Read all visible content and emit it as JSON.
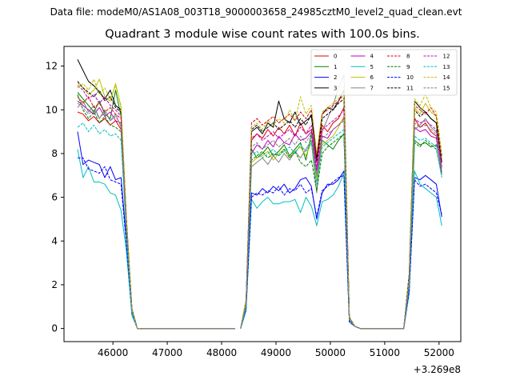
{
  "figure": {
    "supertitle": "Data file: modeM0/AS1A08_003T18_9000003658_24985cztM0_level2_quad_clean.evt",
    "title": "Quadrant 3 module wise count rates with 100.0s bins."
  },
  "chart_data": {
    "type": "line",
    "title": "Quadrant 3 module wise count rates with 100.0s bins.",
    "xlabel": "",
    "ylabel": "",
    "x_offset_label": "+3.269e8",
    "xlim": [
      45100,
      52400
    ],
    "ylim": [
      -0.6,
      12.9
    ],
    "xticks": [
      46000,
      47000,
      48000,
      49000,
      50000,
      51000,
      52000
    ],
    "xtick_labels": [
      "46000",
      "47000",
      "48000",
      "49000",
      "50000",
      "51000",
      "52000"
    ],
    "yticks": [
      0,
      2,
      4,
      6,
      8,
      10,
      12
    ],
    "ytick_labels": [
      "0",
      "2",
      "4",
      "6",
      "8",
      "10",
      "12"
    ],
    "grid": false,
    "legend_position": "top-right",
    "x": [
      45350,
      45450,
      45550,
      45650,
      45750,
      45850,
      45950,
      46050,
      46150,
      46250,
      46350,
      46450,
      46550,
      46650,
      46750,
      46850,
      46950,
      47050,
      47150,
      47250,
      47350,
      47450,
      47550,
      47650,
      47750,
      47850,
      47950,
      48050,
      48150,
      48250,
      48350,
      48450,
      48550,
      48650,
      48750,
      48850,
      48950,
      49050,
      49150,
      49250,
      49350,
      49450,
      49550,
      49650,
      49750,
      49850,
      49950,
      50050,
      50150,
      50250,
      50350,
      50450,
      50550,
      50650,
      50750,
      50850,
      50950,
      51050,
      51150,
      51250,
      51350,
      51450,
      51550,
      51650,
      51750,
      51850,
      51950,
      52050
    ],
    "segments": [
      [
        0,
        12
      ],
      [
        12,
        29
      ],
      [
        30,
        51
      ],
      [
        51,
        58
      ],
      [
        58,
        67
      ]
    ],
    "series": [
      {
        "name": "0",
        "color": "#e00000",
        "dash": "solid",
        "values": [
          9.9,
          9.8,
          9.5,
          9.7,
          9.4,
          9.6,
          9.3,
          9.5,
          9.1,
          4.5,
          0.8,
          0,
          0,
          0,
          0,
          0,
          0,
          0,
          0,
          0,
          0,
          0,
          0,
          0,
          0,
          0,
          0,
          0,
          0,
          0,
          0,
          1.2,
          8.6,
          8.9,
          8.7,
          9.1,
          8.8,
          9.2,
          8.9,
          9.3,
          8.8,
          9.4,
          8.9,
          9.1,
          7.6,
          9.3,
          9.0,
          9.4,
          9.6,
          10.1,
          0.5,
          0.1,
          0,
          0,
          0,
          0,
          0,
          0,
          0,
          0,
          0,
          2.3,
          9.6,
          9.2,
          9.4,
          9.0,
          8.8,
          7.4
        ]
      },
      {
        "name": "1",
        "color": "#008000",
        "dash": "solid",
        "values": [
          10.8,
          10.5,
          10.2,
          9.9,
          10.4,
          9.8,
          9.6,
          10.9,
          9.7,
          4.8,
          0.9,
          0,
          0,
          0,
          0,
          0,
          0,
          0,
          0,
          0,
          0,
          0,
          0,
          0,
          0,
          0,
          0,
          0,
          0,
          0,
          0,
          1.1,
          8.2,
          7.8,
          8.0,
          8.3,
          7.9,
          8.1,
          8.4,
          7.9,
          8.2,
          8.5,
          7.7,
          8.9,
          6.9,
          8.6,
          8.4,
          8.2,
          8.6,
          8.9,
          0.4,
          0.1,
          0,
          0,
          0,
          0,
          0,
          0,
          0,
          0,
          0,
          2.1,
          8.6,
          8.4,
          8.5,
          8.3,
          8.4,
          7.8
        ]
      },
      {
        "name": "2",
        "color": "#0000ff",
        "dash": "solid",
        "values": [
          9.0,
          7.5,
          7.7,
          7.6,
          7.5,
          6.9,
          7.4,
          6.8,
          6.9,
          4.0,
          0.7,
          0,
          0,
          0,
          0,
          0,
          0,
          0,
          0,
          0,
          0,
          0,
          0,
          0,
          0,
          0,
          0,
          0,
          0,
          0,
          0,
          0.9,
          6.2,
          6.1,
          6.4,
          6.2,
          6.5,
          6.3,
          6.6,
          6.2,
          6.4,
          6.8,
          6.9,
          6.5,
          5.0,
          6.2,
          6.6,
          6.6,
          6.8,
          7.2,
          0.3,
          0.1,
          0,
          0,
          0,
          0,
          0,
          0,
          0,
          0,
          0,
          1.8,
          6.9,
          6.8,
          7.0,
          6.8,
          6.6,
          5.1
        ]
      },
      {
        "name": "3",
        "color": "#000000",
        "dash": "solid",
        "values": [
          12.3,
          11.8,
          11.3,
          11.1,
          10.8,
          10.5,
          10.9,
          10.2,
          10.0,
          5.0,
          0.9,
          0,
          0,
          0,
          0,
          0,
          0,
          0,
          0,
          0,
          0,
          0,
          0,
          0,
          0,
          0,
          0,
          0,
          0,
          0,
          0,
          1.3,
          9.0,
          9.2,
          8.9,
          9.4,
          9.2,
          10.4,
          9.6,
          9.4,
          9.9,
          9.3,
          9.5,
          9.7,
          7.8,
          9.8,
          10.1,
          10.0,
          10.4,
          10.9,
          0.5,
          0.1,
          0,
          0,
          0,
          0,
          0,
          0,
          0,
          0,
          0,
          2.5,
          10.4,
          10.1,
          9.9,
          9.6,
          9.4,
          7.6
        ]
      },
      {
        "name": "4",
        "color": "#c000c0",
        "dash": "solid",
        "values": [
          10.4,
          10.2,
          10.0,
          9.8,
          10.1,
          9.7,
          9.9,
          9.5,
          9.4,
          4.6,
          0.8,
          0,
          0,
          0,
          0,
          0,
          0,
          0,
          0,
          0,
          0,
          0,
          0,
          0,
          0,
          0,
          0,
          0,
          0,
          0,
          0,
          1.1,
          8.0,
          8.4,
          8.2,
          8.6,
          8.3,
          8.8,
          8.5,
          8.4,
          8.9,
          8.6,
          8.7,
          9.0,
          7.2,
          8.8,
          8.7,
          9.1,
          9.3,
          9.6,
          0.4,
          0.1,
          0,
          0,
          0,
          0,
          0,
          0,
          0,
          0,
          0,
          2.2,
          9.2,
          9.0,
          9.1,
          8.8,
          8.7,
          7.1
        ]
      },
      {
        "name": "5",
        "color": "#00bfbf",
        "dash": "solid",
        "values": [
          8.2,
          6.9,
          7.4,
          6.7,
          6.7,
          6.6,
          6.2,
          6.1,
          5.4,
          3.5,
          0.6,
          0,
          0,
          0,
          0,
          0,
          0,
          0,
          0,
          0,
          0,
          0,
          0,
          0,
          0,
          0,
          0,
          0,
          0,
          0,
          0,
          0.8,
          5.9,
          5.5,
          5.8,
          6.0,
          5.7,
          5.7,
          5.8,
          5.8,
          5.9,
          5.3,
          6.0,
          5.6,
          4.7,
          5.8,
          5.9,
          6.1,
          6.5,
          7.1,
          0.3,
          0.1,
          0,
          0,
          0,
          0,
          0,
          0,
          0,
          0,
          0,
          1.6,
          7.2,
          6.6,
          6.4,
          6.2,
          6.0,
          4.7
        ]
      },
      {
        "name": "6",
        "color": "#bfbf00",
        "dash": "solid",
        "values": [
          11.2,
          11.0,
          10.7,
          10.9,
          11.4,
          10.6,
          10.4,
          11.2,
          10.1,
          4.9,
          0.9,
          0,
          0,
          0,
          0,
          0,
          0,
          0,
          0,
          0,
          0,
          0,
          0,
          0,
          0,
          0,
          0,
          0,
          0,
          0,
          0,
          1.2,
          7.6,
          7.8,
          7.9,
          8.1,
          7.7,
          8.0,
          8.2,
          7.8,
          8.1,
          8.3,
          7.9,
          8.5,
          6.8,
          8.4,
          8.6,
          8.8,
          9.2,
          9.7,
          0.4,
          0.1,
          0,
          0,
          0,
          0,
          0,
          0,
          0,
          0,
          0,
          2.1,
          10.1,
          9.8,
          10.3,
          9.9,
          9.7,
          7.7
        ]
      },
      {
        "name": "7",
        "color": "#808080",
        "dash": "solid",
        "values": [
          10.1,
          10.4,
          9.9,
          10.2,
          9.6,
          10.0,
          9.5,
          9.8,
          9.2,
          4.4,
          0.8,
          0,
          0,
          0,
          0,
          0,
          0,
          0,
          0,
          0,
          0,
          0,
          0,
          0,
          0,
          0,
          0,
          0,
          0,
          0,
          0,
          1.0,
          7.4,
          7.6,
          7.8,
          7.5,
          7.9,
          7.6,
          8.0,
          7.7,
          8.1,
          7.8,
          8.2,
          8.6,
          6.2,
          9.0,
          9.6,
          10.2,
          11.0,
          11.6,
          0.4,
          0.1,
          0,
          0,
          0,
          0,
          0,
          0,
          0,
          0,
          0,
          2.0,
          9.1,
          9.3,
          9.6,
          9.2,
          9.0,
          7.3
        ]
      },
      {
        "name": "8",
        "color": "#e00000",
        "dash": "dashed",
        "values": [
          10.6,
          10.3,
          10.6,
          10.1,
          10.3,
          9.9,
          10.1,
          9.8,
          9.6,
          4.7,
          0.8,
          0,
          0,
          0,
          0,
          0,
          0,
          0,
          0,
          0,
          0,
          0,
          0,
          0,
          0,
          0,
          0,
          0,
          0,
          0,
          0,
          1.2,
          9.4,
          9.6,
          9.3,
          9.5,
          9.7,
          9.4,
          9.6,
          9.8,
          9.5,
          9.9,
          9.6,
          10.0,
          7.9,
          9.8,
          10.0,
          10.2,
          10.4,
          10.7,
          0.5,
          0.1,
          0,
          0,
          0,
          0,
          0,
          0,
          0,
          0,
          0,
          2.4,
          10.2,
          10.0,
          9.8,
          10.1,
          9.7,
          7.9
        ]
      },
      {
        "name": "9",
        "color": "#008000",
        "dash": "dashed",
        "values": [
          10.7,
          10.0,
          9.6,
          9.9,
          9.4,
          9.7,
          9.3,
          9.2,
          9.0,
          4.4,
          0.8,
          0,
          0,
          0,
          0,
          0,
          0,
          0,
          0,
          0,
          0,
          0,
          0,
          0,
          0,
          0,
          0,
          0,
          0,
          0,
          0,
          1.0,
          7.7,
          7.9,
          8.1,
          7.8,
          8.0,
          7.9,
          8.2,
          7.8,
          8.1,
          7.6,
          7.4,
          7.7,
          6.3,
          8.0,
          8.3,
          8.5,
          8.7,
          8.9,
          0.4,
          0.1,
          0,
          0,
          0,
          0,
          0,
          0,
          0,
          0,
          0,
          2.0,
          8.5,
          8.3,
          8.6,
          8.4,
          8.2,
          7.0
        ]
      },
      {
        "name": "10",
        "color": "#0000ff",
        "dash": "dashed",
        "values": [
          7.8,
          7.8,
          7.3,
          7.2,
          7.1,
          7.4,
          6.8,
          6.7,
          6.6,
          3.8,
          0.7,
          0,
          0,
          0,
          0,
          0,
          0,
          0,
          0,
          0,
          0,
          0,
          0,
          0,
          0,
          0,
          0,
          0,
          0,
          0,
          0,
          0.9,
          6.0,
          6.2,
          6.1,
          6.3,
          6.2,
          6.5,
          6.1,
          6.4,
          6.3,
          6.6,
          6.2,
          6.4,
          5.1,
          6.3,
          6.5,
          6.7,
          6.9,
          7.0,
          0.3,
          0.1,
          0,
          0,
          0,
          0,
          0,
          0,
          0,
          0,
          0,
          1.7,
          6.8,
          6.5,
          6.6,
          6.4,
          6.2,
          5.2
        ]
      },
      {
        "name": "11",
        "color": "#000000",
        "dash": "dashed",
        "values": [
          11.3,
          11.0,
          10.8,
          10.6,
          10.9,
          10.4,
          10.6,
          10.1,
          9.9,
          4.8,
          0.9,
          0,
          0,
          0,
          0,
          0,
          0,
          0,
          0,
          0,
          0,
          0,
          0,
          0,
          0,
          0,
          0,
          0,
          0,
          0,
          0,
          1.2,
          9.1,
          9.3,
          9.0,
          9.2,
          9.4,
          9.1,
          9.3,
          9.5,
          9.2,
          9.6,
          9.3,
          9.8,
          7.7,
          9.6,
          9.8,
          10.0,
          10.3,
          10.5,
          0.5,
          0.1,
          0,
          0,
          0,
          0,
          0,
          0,
          0,
          0,
          0,
          2.3,
          10.0,
          9.7,
          9.9,
          9.6,
          9.4,
          7.6
        ]
      },
      {
        "name": "12",
        "color": "#c000c0",
        "dash": "dashed",
        "values": [
          11.1,
          10.9,
          10.5,
          10.7,
          10.3,
          10.6,
          10.2,
          10.0,
          9.7,
          4.7,
          0.8,
          0,
          0,
          0,
          0,
          0,
          0,
          0,
          0,
          0,
          0,
          0,
          0,
          0,
          0,
          0,
          0,
          0,
          0,
          0,
          0,
          1.1,
          8.7,
          8.9,
          8.6,
          8.8,
          9.0,
          8.7,
          8.9,
          9.1,
          8.8,
          9.2,
          8.9,
          9.3,
          7.4,
          9.1,
          9.3,
          9.5,
          9.7,
          10.0,
          0.4,
          0.1,
          0,
          0,
          0,
          0,
          0,
          0,
          0,
          0,
          0,
          2.2,
          9.6,
          9.4,
          9.5,
          9.3,
          9.1,
          7.4
        ]
      },
      {
        "name": "13",
        "color": "#00bfbf",
        "dash": "dashed",
        "values": [
          9.2,
          9.4,
          9.0,
          9.3,
          8.9,
          9.1,
          8.8,
          8.9,
          8.6,
          4.2,
          0.7,
          0,
          0,
          0,
          0,
          0,
          0,
          0,
          0,
          0,
          0,
          0,
          0,
          0,
          0,
          0,
          0,
          0,
          0,
          0,
          0,
          1.0,
          7.9,
          8.1,
          7.8,
          8.0,
          8.2,
          7.9,
          8.1,
          8.3,
          8.0,
          8.4,
          8.1,
          8.5,
          6.6,
          8.3,
          8.5,
          8.7,
          8.9,
          9.1,
          0.4,
          0.1,
          0,
          0,
          0,
          0,
          0,
          0,
          0,
          0,
          0,
          2.0,
          8.8,
          8.6,
          8.7,
          8.5,
          8.3,
          6.9
        ]
      },
      {
        "name": "14",
        "color": "#bfbf00",
        "dash": "dashed",
        "values": [
          11.0,
          11.2,
          10.9,
          11.4,
          10.7,
          11.0,
          10.5,
          11.1,
          10.2,
          5.0,
          0.9,
          0,
          0,
          0,
          0,
          0,
          0,
          0,
          0,
          0,
          0,
          0,
          0,
          0,
          0,
          0,
          0,
          0,
          0,
          0,
          0,
          1.3,
          9.2,
          9.4,
          9.1,
          9.5,
          9.3,
          9.6,
          9.4,
          10.0,
          9.5,
          10.6,
          9.8,
          10.2,
          8.0,
          9.9,
          10.1,
          10.3,
          10.5,
          10.8,
          0.5,
          0.1,
          0,
          0,
          0,
          0,
          0,
          0,
          0,
          0,
          0,
          2.4,
          10.5,
          10.2,
          10.7,
          10.1,
          9.9,
          8.0
        ]
      },
      {
        "name": "15",
        "color": "#808080",
        "dash": "dashed",
        "values": [
          10.3,
          10.1,
          9.8,
          10.0,
          9.6,
          9.9,
          9.5,
          9.7,
          9.3,
          4.5,
          0.8,
          0,
          0,
          0,
          0,
          0,
          0,
          0,
          0,
          0,
          0,
          0,
          0,
          0,
          0,
          0,
          0,
          0,
          0,
          0,
          0,
          1.1,
          8.3,
          8.5,
          8.2,
          8.4,
          8.6,
          8.3,
          8.5,
          8.7,
          8.4,
          8.8,
          8.5,
          8.9,
          7.0,
          8.7,
          8.9,
          9.1,
          9.3,
          9.5,
          0.4,
          0.1,
          0,
          0,
          0,
          0,
          0,
          0,
          0,
          0,
          0,
          2.1,
          9.4,
          9.2,
          9.3,
          9.1,
          8.9,
          7.2
        ]
      }
    ]
  }
}
